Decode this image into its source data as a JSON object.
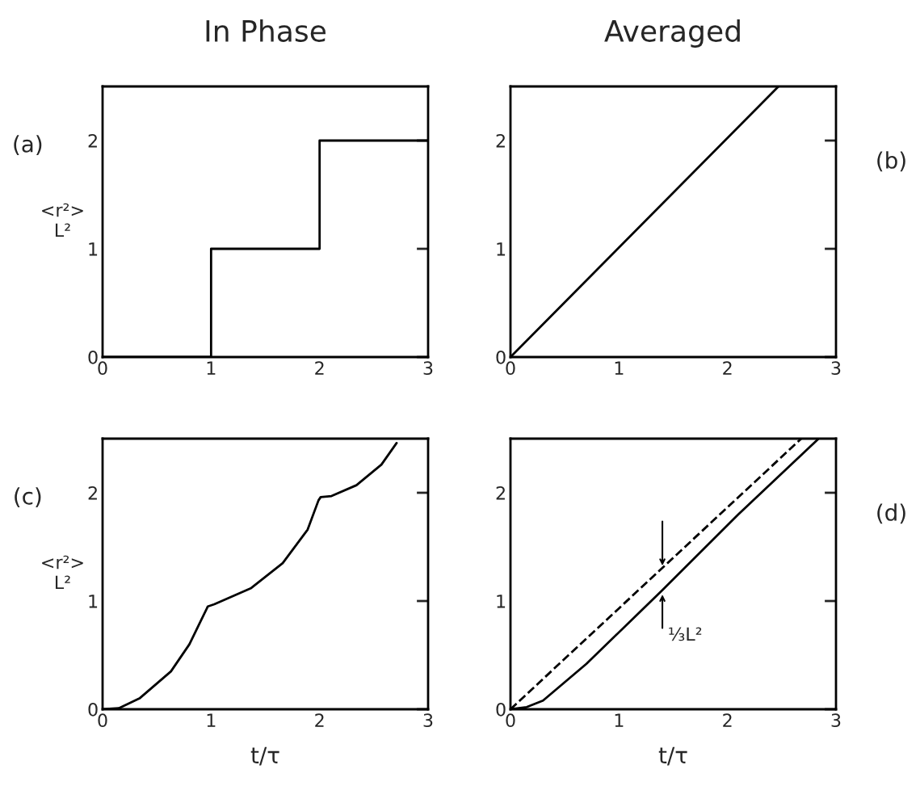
{
  "chart_data": [
    {
      "type": "step",
      "title": "In Phase",
      "ylabel": "<r²>\nL²",
      "annotations": [
        "(a)"
      ],
      "xlim": [
        0,
        3
      ],
      "ylim": [
        0,
        2.5
      ],
      "xticks": [
        0,
        1,
        2,
        3
      ],
      "yticks": [
        0,
        1,
        2
      ],
      "grid": false,
      "legend": false,
      "series": [
        {
          "color": "#000000",
          "x": [
            0,
            1,
            2,
            3
          ],
          "values": [
            0,
            1,
            2,
            2
          ]
        }
      ]
    },
    {
      "type": "line",
      "title": "Averaged",
      "annotations": [
        "(b)"
      ],
      "xlim": [
        0,
        3
      ],
      "ylim": [
        0,
        2.5
      ],
      "xticks": [
        0,
        1,
        2,
        3
      ],
      "yticks": [
        0,
        1,
        2
      ],
      "grid": false,
      "legend": false,
      "series": [
        {
          "color": "#000000",
          "x": [
            0,
            2.47
          ],
          "values": [
            0,
            2.5
          ]
        }
      ]
    },
    {
      "type": "line",
      "xlabel": "t/τ",
      "ylabel": "<r²>\nL²",
      "annotations": [
        "(c)"
      ],
      "xlim": [
        0,
        3
      ],
      "ylim": [
        0,
        2.5
      ],
      "xticks": [
        0,
        1,
        2,
        3
      ],
      "yticks": [
        0,
        1,
        2
      ],
      "grid": false,
      "legend": false,
      "series": [
        {
          "color": "#000000",
          "x": [
            0,
            0.15,
            0.34,
            0.63,
            0.8,
            0.97,
            1.03,
            1.37,
            1.66,
            1.89,
            1.99,
            2.01,
            2.11,
            2.34,
            2.57,
            2.71
          ],
          "values": [
            0,
            0.01,
            0.1,
            0.35,
            0.6,
            0.95,
            0.97,
            1.12,
            1.35,
            1.66,
            1.93,
            1.96,
            1.97,
            2.07,
            2.26,
            2.46
          ]
        }
      ]
    },
    {
      "type": "line",
      "xlabel": "t/τ",
      "annotations": [
        "(d)",
        {
          "text": "⅓L²",
          "x": 1.4,
          "y": 1.08
        }
      ],
      "xlim": [
        0,
        3
      ],
      "ylim": [
        0,
        2.5
      ],
      "xticks": [
        0,
        1,
        2,
        3
      ],
      "yticks": [
        0,
        1,
        2
      ],
      "grid": false,
      "legend": false,
      "series": [
        {
          "color": "#000000",
          "line_style": "dashed",
          "x": [
            0,
            2.68
          ],
          "values": [
            0,
            2.5
          ]
        },
        {
          "color": "#000000",
          "line_style": "solid",
          "x": [
            0,
            0.15,
            0.3,
            0.5,
            0.7,
            1.4,
            2.1,
            2.84
          ],
          "values": [
            0,
            0.02,
            0.08,
            0.25,
            0.42,
            1.1,
            1.8,
            2.5
          ]
        }
      ]
    }
  ]
}
